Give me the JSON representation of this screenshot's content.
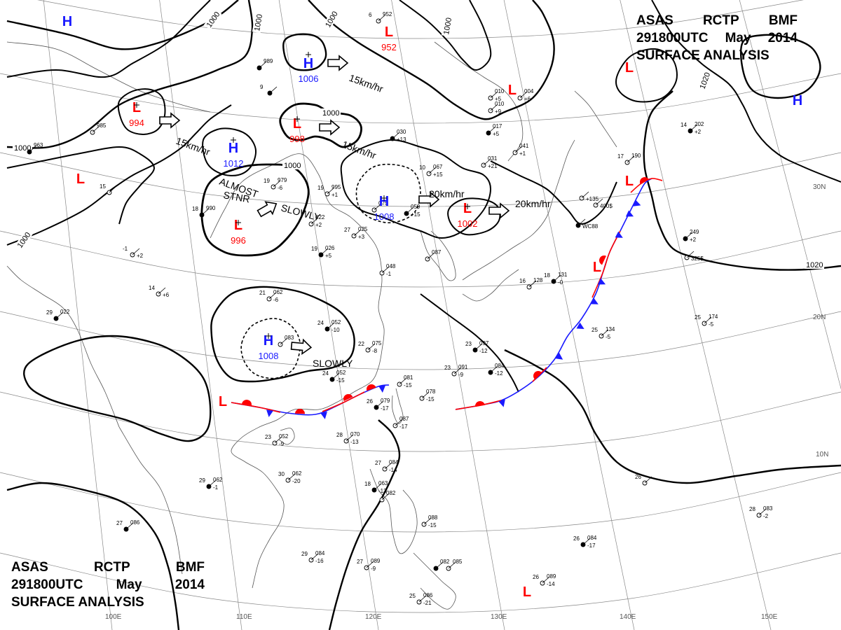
{
  "title": {
    "agency": "ASAS",
    "station": "RCTP",
    "office": "BMF",
    "datetime": "291800UTC",
    "month": "May",
    "year": "2014",
    "product": "SURFACE ANALYSIS"
  },
  "colors": {
    "high": "#1a1aff",
    "low": "#ff0000",
    "cold_front": "#1a1aff",
    "warm_front": "#ff0000",
    "isobar": "#000000",
    "grid": "#888888"
  },
  "grid_labels": {
    "latitudes": [
      "30N",
      "20N",
      "10N"
    ],
    "longitudes": [
      "100E",
      "110E",
      "120E",
      "130E",
      "140E",
      "150E"
    ]
  },
  "pressure_centers": [
    {
      "type": "H",
      "value": "1006"
    },
    {
      "type": "H",
      "value": "1012"
    },
    {
      "type": "H",
      "value": "1008"
    },
    {
      "type": "H",
      "value": "1008"
    },
    {
      "type": "H",
      "value": ""
    },
    {
      "type": "H",
      "value": ""
    },
    {
      "type": "L",
      "value": "994"
    },
    {
      "type": "L",
      "value": "998"
    },
    {
      "type": "L",
      "value": "996"
    },
    {
      "type": "L",
      "value": "1002"
    },
    {
      "type": "L",
      "value": "952"
    },
    {
      "type": "L",
      "value": ""
    },
    {
      "type": "L",
      "value": ""
    },
    {
      "type": "L",
      "value": ""
    },
    {
      "type": "L",
      "value": ""
    },
    {
      "type": "L",
      "value": ""
    },
    {
      "type": "L",
      "value": ""
    },
    {
      "type": "L",
      "value": ""
    }
  ],
  "movements": [
    {
      "label": "15km/hr"
    },
    {
      "label": "15km/hr"
    },
    {
      "label": "15km/hr"
    },
    {
      "label": "20km/hr"
    },
    {
      "label": "20km/hr"
    },
    {
      "label": "SLOWLY"
    },
    {
      "label": "SLOWLY"
    }
  ],
  "annotations": [
    "ALMOST",
    "STNR"
  ],
  "isobar_labels": [
    "1000",
    "1000",
    "1000",
    "1000",
    "1000",
    "1000",
    "1000",
    "1000",
    "1020",
    "1020"
  ],
  "station_reports": [
    {
      "temp": "",
      "pressure": "989",
      "tend": ""
    },
    {
      "temp": "6",
      "pressure": "952",
      "tend": ""
    },
    {
      "temp": "",
      "pressure": "985",
      "tend": ""
    },
    {
      "temp": "",
      "pressure": "963",
      "tend": ""
    },
    {
      "temp": "",
      "pressure": "010",
      "tend": "+9"
    },
    {
      "temp": "",
      "pressure": "010",
      "tend": "+5"
    },
    {
      "temp": "",
      "pressure": "017",
      "tend": "+5"
    },
    {
      "temp": "",
      "pressure": "041",
      "tend": "+1"
    },
    {
      "temp": "",
      "pressure": "004",
      "tend": "+6"
    },
    {
      "temp": "",
      "pressure": "030",
      "tend": "+13"
    },
    {
      "temp": "",
      "pressure": "031",
      "tend": "+21"
    },
    {
      "temp": "17",
      "pressure": "190",
      "tend": ""
    },
    {
      "temp": "14",
      "pressure": "202",
      "tend": "+2"
    },
    {
      "temp": "10",
      "pressure": "067",
      "tend": "+15"
    },
    {
      "temp": "",
      "pressure": "075",
      "tend": ""
    },
    {
      "temp": "",
      "pressure": "059",
      "tend": "+15"
    },
    {
      "temp": "19",
      "pressure": "979",
      "tend": "-6"
    },
    {
      "temp": "19",
      "pressure": "995",
      "tend": "+1"
    },
    {
      "temp": "18",
      "pressure": "990",
      "tend": ""
    },
    {
      "temp": "",
      "pressure": "022",
      "tend": "+2"
    },
    {
      "temp": "27",
      "pressure": "025",
      "tend": "+3"
    },
    {
      "temp": "19",
      "pressure": "026",
      "tend": "+5"
    },
    {
      "temp": "",
      "pressure": "048",
      "tend": "-1"
    },
    {
      "temp": "",
      "pressure": "087",
      "tend": ""
    },
    {
      "temp": "18",
      "pressure": "131",
      "tend": "-0"
    },
    {
      "temp": "16",
      "pressure": "128",
      "tend": ""
    },
    {
      "temp": "21",
      "pressure": "062",
      "tend": "-6"
    },
    {
      "temp": "24",
      "pressure": "052",
      "tend": "-10"
    },
    {
      "temp": "",
      "pressure": "083",
      "tend": ""
    },
    {
      "temp": "22",
      "pressure": "075",
      "tend": "-8"
    },
    {
      "temp": "23",
      "pressure": "097",
      "tend": "-12"
    },
    {
      "temp": "25",
      "pressure": "134",
      "tend": "-5"
    },
    {
      "temp": "25",
      "pressure": "174",
      "tend": "-5"
    },
    {
      "temp": "29",
      "pressure": "022",
      "tend": ""
    },
    {
      "temp": "14",
      "pressure": "",
      "tend": "+6"
    },
    {
      "temp": "-1",
      "pressure": "",
      "tend": "+2"
    },
    {
      "temp": "24",
      "pressure": "052",
      "tend": "-15"
    },
    {
      "temp": "",
      "pressure": "081",
      "tend": "-15"
    },
    {
      "temp": "",
      "pressure": "078",
      "tend": "-15"
    },
    {
      "temp": "26",
      "pressure": "079",
      "tend": "-17"
    },
    {
      "temp": "",
      "pressure": "087",
      "tend": "-17"
    },
    {
      "temp": "23",
      "pressure": "091",
      "tend": "-9"
    },
    {
      "temp": "",
      "pressure": "084",
      "tend": "-12"
    },
    {
      "temp": "23",
      "pressure": "052",
      "tend": "-9"
    },
    {
      "temp": "28",
      "pressure": "070",
      "tend": "-13"
    },
    {
      "temp": "29",
      "pressure": "062",
      "tend": "-1"
    },
    {
      "temp": "30",
      "pressure": "062",
      "tend": "-20"
    },
    {
      "temp": "27",
      "pressure": "084",
      "tend": "-14"
    },
    {
      "temp": "18",
      "pressure": "063",
      "tend": "-13"
    },
    {
      "temp": "",
      "pressure": "082",
      "tend": ""
    },
    {
      "temp": "",
      "pressure": "088",
      "tend": "-15"
    },
    {
      "temp": "27",
      "pressure": "086",
      "tend": ""
    },
    {
      "temp": "29",
      "pressure": "084",
      "tend": "-16"
    },
    {
      "temp": "27",
      "pressure": "089",
      "tend": "-9"
    },
    {
      "temp": "",
      "pressure": "082",
      "tend": ""
    },
    {
      "temp": "",
      "pressure": "085",
      "tend": ""
    },
    {
      "temp": "25",
      "pressure": "086",
      "tend": "-21"
    },
    {
      "temp": "26",
      "pressure": "084",
      "tend": "-17"
    },
    {
      "temp": "26",
      "pressure": "089",
      "tend": "-14"
    },
    {
      "temp": "28",
      "pressure": "083",
      "tend": "-2"
    },
    {
      "temp": "",
      "pressure": "249",
      "tend": "+2"
    },
    {
      "temp": "",
      "pressure": "",
      "tend": "325$"
    },
    {
      "temp": "",
      "pressure": "",
      "tend": "400$"
    },
    {
      "temp": "",
      "pressure": "",
      "tend": "WC88"
    },
    {
      "temp": "",
      "pressure": "",
      "tend": "+135"
    },
    {
      "temp": "26",
      "pressure": "",
      "tend": ""
    },
    {
      "temp": "9",
      "pressure": "",
      "tend": ""
    },
    {
      "temp": "15",
      "pressure": "",
      "tend": ""
    }
  ]
}
